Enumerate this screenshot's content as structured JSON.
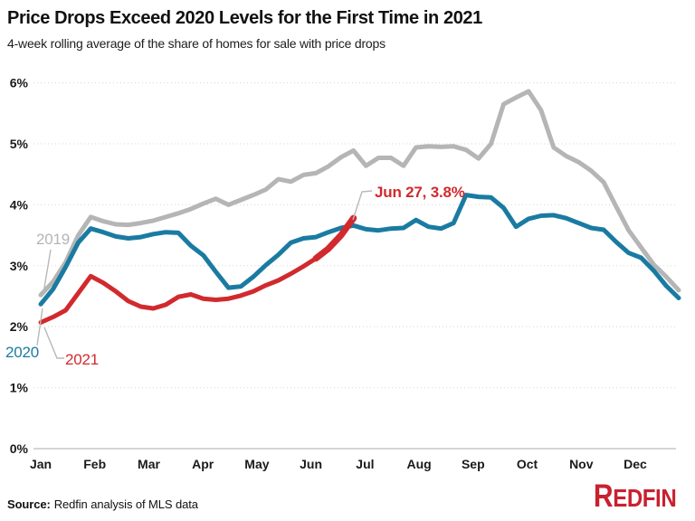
{
  "header": {
    "title": "Price Drops Exceed 2020 Levels for the First Time in 2021",
    "subtitle": "4-week rolling average of the share of homes for sale with price drops"
  },
  "footer": {
    "source_label": "Source:",
    "source_text": "Redfin analysis of MLS data",
    "brand_first_letter": "R",
    "brand_rest": "EDFIN"
  },
  "chart_data": {
    "type": "line",
    "title": "Price Drops Exceed 2020 Levels for the First Time in 2021",
    "subtitle": "4-week rolling average of the share of homes for sale with price drops",
    "x_unit": "week of year, Jan through Dec (weekly points)",
    "y_unit": "share of homes for sale with price drops (%)",
    "ylim": [
      0,
      6
    ],
    "grid": "horizontal dotted lines, solid baseline at 0%",
    "legend_position": "inline labels at line starts",
    "x_ticks": [
      "Jan",
      "Feb",
      "Mar",
      "Apr",
      "May",
      "Jun",
      "Jul",
      "Aug",
      "Sep",
      "Oct",
      "Nov",
      "Dec"
    ],
    "y_ticks": [
      {
        "label": "6%",
        "value": 6
      },
      {
        "label": "5%",
        "value": 5
      },
      {
        "label": "4%",
        "value": 4
      },
      {
        "label": "3%",
        "value": 3
      },
      {
        "label": "2%",
        "value": 2
      },
      {
        "label": "1%",
        "value": 1
      },
      {
        "label": "0%",
        "value": 0
      }
    ],
    "series": [
      {
        "name": "2019",
        "color": "#b5b5b5",
        "values": [
          2.52,
          2.74,
          3.06,
          3.5,
          3.8,
          3.73,
          3.68,
          3.67,
          3.7,
          3.74,
          3.8,
          3.86,
          3.93,
          4.02,
          4.1,
          4.0,
          4.08,
          4.16,
          4.25,
          4.42,
          4.38,
          4.49,
          4.52,
          4.63,
          4.78,
          4.89,
          4.64,
          4.77,
          4.77,
          4.64,
          4.94,
          4.96,
          4.95,
          4.96,
          4.9,
          4.76,
          5.0,
          5.65,
          5.76,
          5.86,
          5.55,
          4.94,
          4.8,
          4.7,
          4.56,
          4.37,
          3.97,
          3.58,
          3.3,
          3.02,
          2.82,
          2.6
        ]
      },
      {
        "name": "2020",
        "color": "#1a7ba2",
        "values": [
          2.37,
          2.62,
          2.98,
          3.38,
          3.61,
          3.55,
          3.48,
          3.45,
          3.47,
          3.52,
          3.55,
          3.54,
          3.33,
          3.17,
          2.9,
          2.64,
          2.66,
          2.82,
          3.01,
          3.18,
          3.38,
          3.45,
          3.47,
          3.55,
          3.62,
          3.66,
          3.6,
          3.58,
          3.61,
          3.62,
          3.75,
          3.64,
          3.61,
          3.7,
          4.16,
          4.13,
          4.12,
          3.95,
          3.64,
          3.77,
          3.82,
          3.83,
          3.78,
          3.7,
          3.62,
          3.59,
          3.39,
          3.21,
          3.13,
          2.92,
          2.67,
          2.47
        ]
      },
      {
        "name": "2021",
        "color": "#d12a2e",
        "values": [
          2.07,
          2.16,
          2.27,
          2.55,
          2.83,
          2.72,
          2.58,
          2.42,
          2.33,
          2.3,
          2.36,
          2.49,
          2.53,
          2.46,
          2.44,
          2.46,
          2.51,
          2.58,
          2.68,
          2.76,
          2.87,
          2.99,
          3.12,
          3.28,
          3.5,
          3.78
        ]
      }
    ],
    "annotations": [
      {
        "id": "label-2019",
        "text": "2019",
        "series": "2019",
        "week": 0
      },
      {
        "id": "label-2020",
        "text": "2020",
        "series": "2020",
        "week": 0
      },
      {
        "id": "label-2021",
        "text": "2021",
        "series": "2021",
        "week": 0
      },
      {
        "id": "callout-jun27",
        "text": "Jun 27, 3.8%",
        "series": "2021",
        "week": 25,
        "date": "Jun 27",
        "value": 3.8
      }
    ]
  }
}
